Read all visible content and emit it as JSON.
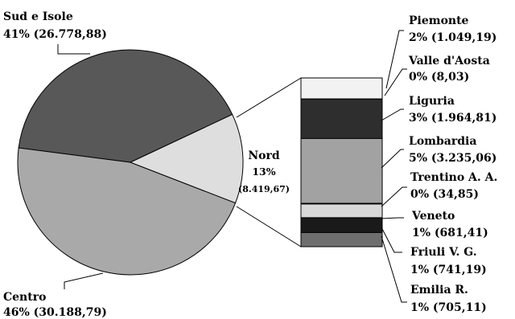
{
  "colors": {
    "sud": "#585858",
    "centro": "#a9a9a9",
    "nord": "#dedede",
    "piemonte": "#f2f2f2",
    "liguria": "#2e2e2e",
    "lombardia": "#a2a2a2",
    "veneto": "#d8d8d8",
    "friuli": "#1a1a1a",
    "emilia": "#6e6e6e",
    "stroke": "#000000"
  },
  "chart_data": {
    "type": "pie",
    "pie": {
      "slices": [
        {
          "name": "Sud e Isole",
          "value_label": "41% (26.778,88)",
          "percent": 41,
          "value": 26778.88
        },
        {
          "name": "Centro",
          "value_label": "46% (30.188,79)",
          "percent": 46,
          "value": 30188.79
        },
        {
          "name": "Nord",
          "percent_label": "13%",
          "value_label": "(8.419,67)",
          "percent": 13,
          "value": 8419.67
        }
      ]
    },
    "breakdown_of": "Nord",
    "breakdown": [
      {
        "name": "Piemonte",
        "value_label": "2% (1.049,19)",
        "percent": 2,
        "value": 1049.19
      },
      {
        "name": "Valle d'Aosta",
        "value_label": "0% (8,03)",
        "percent": 0,
        "value": 8.03
      },
      {
        "name": "Liguria",
        "value_label": "3% (1.964,81)",
        "percent": 3,
        "value": 1964.81
      },
      {
        "name": "Lombardia",
        "value_label": "5% (3.235,06)",
        "percent": 5,
        "value": 3235.06
      },
      {
        "name": "Trentino A. A.",
        "value_label": "0% (34,85)",
        "percent": 0,
        "value": 34.85
      },
      {
        "name": "Veneto",
        "value_label": "1% (681,41)",
        "percent": 1,
        "value": 681.41
      },
      {
        "name": "Friuli V. G.",
        "value_label": "1% (741,19)",
        "percent": 1,
        "value": 741.19
      },
      {
        "name": "Emilia R.",
        "value_label": "1% (705,11)",
        "percent": 1,
        "value": 705.11
      }
    ]
  }
}
